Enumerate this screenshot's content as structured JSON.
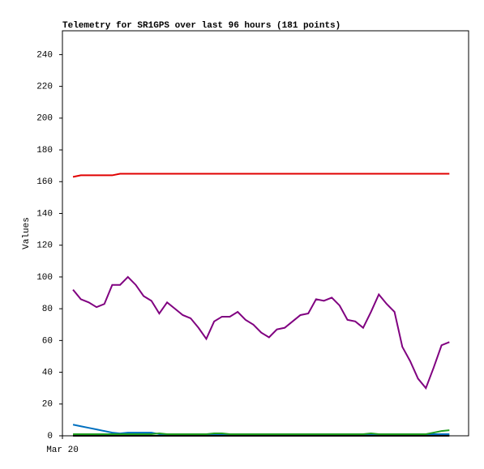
{
  "chart_data": {
    "type": "line",
    "title": "Telemetry for SR1GPS over last 96 hours (181 points)",
    "ylabel": "Values",
    "x": [
      0,
      2,
      4,
      6,
      8,
      10,
      12,
      14,
      16,
      18,
      20,
      22,
      24,
      26,
      28,
      30,
      32,
      34,
      36,
      38,
      40,
      42,
      44,
      46,
      48,
      50,
      52,
      54,
      56,
      58,
      60,
      62,
      64,
      66,
      68,
      70,
      72,
      74,
      76,
      78,
      80,
      82,
      84,
      86,
      88,
      90,
      92,
      94,
      96
    ],
    "xlim": [
      -2.7,
      100.9
    ],
    "xticks": [
      {
        "value": -2.7,
        "label": "Mar 20"
      }
    ],
    "ylim": [
      0,
      255
    ],
    "yticks": [
      0,
      20,
      40,
      60,
      80,
      100,
      120,
      140,
      160,
      180,
      200,
      220,
      240
    ],
    "series": [
      {
        "color": "#e00000",
        "values": [
          163,
          164,
          164,
          164,
          164,
          164,
          165,
          165,
          165,
          165,
          165,
          165,
          165,
          165,
          165,
          165,
          165,
          165,
          165,
          165,
          165,
          165,
          165,
          165,
          165,
          165,
          165,
          165,
          165,
          165,
          165,
          165,
          165,
          165,
          165,
          165,
          165,
          165,
          165,
          165,
          165,
          165,
          165,
          165,
          165,
          165,
          165,
          165,
          165
        ]
      },
      {
        "color": "#800080",
        "values": [
          92,
          86,
          84,
          81,
          83,
          95,
          95,
          100,
          95,
          88,
          85,
          77,
          84,
          80,
          76,
          74,
          68,
          61,
          72,
          75,
          75,
          78,
          73,
          70,
          65,
          62,
          67,
          68,
          72,
          76,
          77,
          86,
          85,
          87,
          82,
          73,
          72,
          68,
          78,
          89,
          83,
          78,
          56,
          47,
          36,
          30,
          43,
          57,
          59
        ]
      },
      {
        "color": "#0070c0",
        "values": [
          7,
          6,
          5,
          4,
          3,
          2,
          1.5,
          2,
          2,
          2,
          2,
          1,
          1,
          1,
          1,
          1,
          1,
          1,
          1,
          1,
          1,
          1,
          1,
          1,
          1,
          1,
          1,
          1,
          1,
          1,
          1,
          1,
          1,
          1,
          1,
          1,
          1,
          1,
          1,
          1,
          1,
          1,
          1,
          1,
          1,
          1,
          1,
          1,
          1
        ]
      },
      {
        "color": "#20a020",
        "values": [
          1,
          1,
          1,
          1,
          1,
          1,
          1,
          1,
          1,
          1,
          1,
          1.5,
          1,
          1,
          1,
          1,
          1,
          1,
          1.5,
          1.5,
          1,
          1,
          1,
          1,
          1,
          1,
          1,
          1,
          1,
          1,
          1,
          1,
          1,
          1,
          1,
          1,
          1,
          1,
          1.5,
          1,
          1,
          1,
          1,
          1,
          1,
          1,
          2,
          3,
          3.5
        ]
      },
      {
        "color": "#000000",
        "values": [
          0,
          0,
          0,
          0,
          0,
          0,
          0,
          0,
          0,
          0,
          0,
          0,
          0,
          0,
          0,
          0,
          0,
          0,
          0,
          0,
          0,
          0,
          0,
          0,
          0,
          0,
          0,
          0,
          0,
          0,
          0,
          0,
          0,
          0,
          0,
          0,
          0,
          0,
          0,
          0,
          0,
          0,
          0,
          0,
          0,
          0,
          0,
          0,
          0
        ]
      }
    ]
  }
}
